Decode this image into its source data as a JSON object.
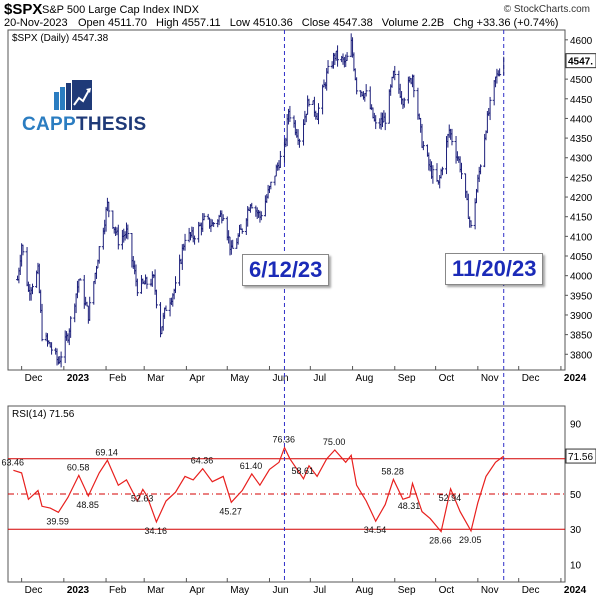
{
  "header": {
    "ticker": "$SPX",
    "full_name": "S&P 500 Large Cap Index",
    "exchange": "INDX",
    "date": "20-Nov-2023",
    "open_label": "Open",
    "open": "4511.70",
    "high_label": "High",
    "high": "4557.11",
    "low_label": "Low",
    "low": "4510.36",
    "close_label": "Close",
    "close": "4547.38",
    "volume_label": "Volume",
    "volume": "2.2B",
    "chg_label": "Chg",
    "chg": "+33.36 (+0.74%)",
    "copyright": "© StockCharts.com"
  },
  "logo": {
    "part1": "CAPP",
    "part2": "THESIS"
  },
  "annotations": [
    "6/12/23",
    "11/20/23"
  ],
  "colors": {
    "price": "#1c1f7a",
    "rsi": "#e8201e",
    "level": "#d40000",
    "marker": "#3030c8",
    "callout_text": "#1b2bb8"
  },
  "chart_data": [
    {
      "type": "bar",
      "legend": "$SPX (Daily) 4547.38",
      "last_value_label": "4547.",
      "y_ticks": [
        "4600",
        "4550",
        "4500",
        "4450",
        "4400",
        "4350",
        "4300",
        "4250",
        "4200",
        "4150",
        "4100",
        "4050",
        "4000",
        "3950",
        "3900",
        "3850",
        "3800"
      ],
      "ylim": [
        3760,
        4625
      ],
      "x_ticks": [
        "Dec",
        "2023",
        "Feb",
        "Mar",
        "Apr",
        "May",
        "Jun",
        "Jul",
        "Aug",
        "Sep",
        "Oct",
        "Nov",
        "Dec",
        "2024"
      ],
      "x_tick_dates": [
        "2022-12-01",
        "2023-01-01",
        "2023-02-01",
        "2023-03-01",
        "2023-04-01",
        "2023-05-01",
        "2023-06-01",
        "2023-07-01",
        "2023-08-01",
        "2023-09-01",
        "2023-10-01",
        "2023-11-01",
        "2023-12-01",
        "2024-01-01"
      ],
      "x_range": [
        "2022-11-21",
        "2024-01-04"
      ],
      "vertical_markers": [
        "2023-06-12",
        "2023-11-20"
      ],
      "series": [
        {
          "values": [
            [
              "2022-11-28",
              3990
            ],
            [
              "2022-12-01",
              4080
            ],
            [
              "2022-12-06",
              3960
            ],
            [
              "2022-12-13",
              4010
            ],
            [
              "2022-12-16",
              3850
            ],
            [
              "2022-12-22",
              3820
            ],
            [
              "2022-12-28",
              3780
            ],
            [
              "2023-01-04",
              3850
            ],
            [
              "2023-01-12",
              3990
            ],
            [
              "2023-01-19",
              3900
            ],
            [
              "2023-01-27",
              4070
            ],
            [
              "2023-02-02",
              4180
            ],
            [
              "2023-02-10",
              4090
            ],
            [
              "2023-02-16",
              4110
            ],
            [
              "2023-02-24",
              3970
            ],
            [
              "2023-03-02",
              3980
            ],
            [
              "2023-03-08",
              3990
            ],
            [
              "2023-03-13",
              3860
            ],
            [
              "2023-03-17",
              3920
            ],
            [
              "2023-03-24",
              3970
            ],
            [
              "2023-03-31",
              4100
            ],
            [
              "2023-04-06",
              4100
            ],
            [
              "2023-04-14",
              4140
            ],
            [
              "2023-04-20",
              4130
            ],
            [
              "2023-04-28",
              4160
            ],
            [
              "2023-05-04",
              4060
            ],
            [
              "2023-05-12",
              4120
            ],
            [
              "2023-05-18",
              4190
            ],
            [
              "2023-05-25",
              4150
            ],
            [
              "2023-06-01",
              4220
            ],
            [
              "2023-06-08",
              4290
            ],
            [
              "2023-06-12",
              4320
            ],
            [
              "2023-06-15",
              4420
            ],
            [
              "2023-06-23",
              4350
            ],
            [
              "2023-06-30",
              4450
            ],
            [
              "2023-07-06",
              4410
            ],
            [
              "2023-07-13",
              4510
            ],
            [
              "2023-07-19",
              4560
            ],
            [
              "2023-07-27",
              4540
            ],
            [
              "2023-07-31",
              4590
            ],
            [
              "2023-08-04",
              4480
            ],
            [
              "2023-08-11",
              4460
            ],
            [
              "2023-08-18",
              4380
            ],
            [
              "2023-08-25",
              4400
            ],
            [
              "2023-08-31",
              4510
            ],
            [
              "2023-09-07",
              4450
            ],
            [
              "2023-09-14",
              4510
            ],
            [
              "2023-09-21",
              4340
            ],
            [
              "2023-09-27",
              4270
            ],
            [
              "2023-10-03",
              4230
            ],
            [
              "2023-10-11",
              4370
            ],
            [
              "2023-10-19",
              4280
            ],
            [
              "2023-10-27",
              4120
            ],
            [
              "2023-11-01",
              4240
            ],
            [
              "2023-11-07",
              4380
            ],
            [
              "2023-11-14",
              4500
            ],
            [
              "2023-11-20",
              4547
            ]
          ]
        }
      ]
    },
    {
      "type": "line",
      "legend": "RSI(14) 71.56",
      "last_value_label": "71.56",
      "y_ticks": [
        "90",
        "70",
        "50",
        "30",
        "10"
      ],
      "ylim": [
        0,
        100
      ],
      "reference_lines": [
        70,
        50,
        30
      ],
      "x_ticks": [
        "Dec",
        "2023",
        "Feb",
        "Mar",
        "Apr",
        "May",
        "Jun",
        "Jul",
        "Aug",
        "Sep",
        "Oct",
        "Nov",
        "Dec",
        "2024"
      ],
      "labels": [
        {
          "date": "2022-11-25",
          "value": 63.46,
          "text": "63.46"
        },
        {
          "date": "2022-12-28",
          "value": 39.59,
          "text": "39.59"
        },
        {
          "date": "2023-01-12",
          "value": 60.58,
          "text": "60.58"
        },
        {
          "date": "2023-01-19",
          "value": 48.85,
          "text": "48.85"
        },
        {
          "date": "2023-02-02",
          "value": 69.14,
          "text": "69.14"
        },
        {
          "date": "2023-02-28",
          "value": 52.63,
          "text": "52.63"
        },
        {
          "date": "2023-03-10",
          "value": 34.16,
          "text": "34.16"
        },
        {
          "date": "2023-04-13",
          "value": 64.36,
          "text": "64.36"
        },
        {
          "date": "2023-05-04",
          "value": 45.27,
          "text": "45.27"
        },
        {
          "date": "2023-05-19",
          "value": 61.4,
          "text": "61.40"
        },
        {
          "date": "2023-06-12",
          "value": 76.36,
          "text": "76.36"
        },
        {
          "date": "2023-06-26",
          "value": 58.61,
          "text": "58.61"
        },
        {
          "date": "2023-07-19",
          "value": 75.0,
          "text": "75.00"
        },
        {
          "date": "2023-08-18",
          "value": 34.54,
          "text": "34.54"
        },
        {
          "date": "2023-08-31",
          "value": 58.28,
          "text": "58.28"
        },
        {
          "date": "2023-09-12",
          "value": 48.31,
          "text": "48.31"
        },
        {
          "date": "2023-10-05",
          "value": 28.66,
          "text": "28.66"
        },
        {
          "date": "2023-10-12",
          "value": 52.94,
          "text": "52.94"
        },
        {
          "date": "2023-10-27",
          "value": 29.05,
          "text": "29.05"
        }
      ],
      "series": [
        {
          "values": [
            [
              "2022-11-25",
              63.46
            ],
            [
              "2022-12-01",
              62
            ],
            [
              "2022-12-06",
              47
            ],
            [
              "2022-12-13",
              52
            ],
            [
              "2022-12-16",
              43
            ],
            [
              "2022-12-22",
              42
            ],
            [
              "2022-12-28",
              39.59
            ],
            [
              "2023-01-04",
              48
            ],
            [
              "2023-01-12",
              60.58
            ],
            [
              "2023-01-19",
              48.85
            ],
            [
              "2023-01-27",
              62
            ],
            [
              "2023-02-02",
              69.14
            ],
            [
              "2023-02-10",
              55
            ],
            [
              "2023-02-16",
              58
            ],
            [
              "2023-02-24",
              46
            ],
            [
              "2023-02-28",
              52.63
            ],
            [
              "2023-03-03",
              49
            ],
            [
              "2023-03-10",
              34.16
            ],
            [
              "2023-03-17",
              46
            ],
            [
              "2023-03-24",
              51
            ],
            [
              "2023-03-31",
              60
            ],
            [
              "2023-04-06",
              58
            ],
            [
              "2023-04-13",
              64.36
            ],
            [
              "2023-04-20",
              57
            ],
            [
              "2023-04-28",
              60
            ],
            [
              "2023-05-04",
              45.27
            ],
            [
              "2023-05-12",
              52
            ],
            [
              "2023-05-19",
              61.4
            ],
            [
              "2023-05-25",
              55
            ],
            [
              "2023-06-01",
              64
            ],
            [
              "2023-06-08",
              68
            ],
            [
              "2023-06-12",
              76.36
            ],
            [
              "2023-06-16",
              70
            ],
            [
              "2023-06-26",
              58.61
            ],
            [
              "2023-06-30",
              66
            ],
            [
              "2023-07-06",
              60
            ],
            [
              "2023-07-13",
              70
            ],
            [
              "2023-07-19",
              75.0
            ],
            [
              "2023-07-27",
              68
            ],
            [
              "2023-07-31",
              72
            ],
            [
              "2023-08-04",
              55
            ],
            [
              "2023-08-11",
              46
            ],
            [
              "2023-08-18",
              34.54
            ],
            [
              "2023-08-25",
              44
            ],
            [
              "2023-08-31",
              58.28
            ],
            [
              "2023-09-07",
              47
            ],
            [
              "2023-09-12",
              48.31
            ],
            [
              "2023-09-14",
              56
            ],
            [
              "2023-09-21",
              40
            ],
            [
              "2023-09-27",
              36
            ],
            [
              "2023-10-05",
              28.66
            ],
            [
              "2023-10-12",
              52.94
            ],
            [
              "2023-10-19",
              40
            ],
            [
              "2023-10-27",
              29.05
            ],
            [
              "2023-11-01",
              45
            ],
            [
              "2023-11-07",
              60
            ],
            [
              "2023-11-14",
              68
            ],
            [
              "2023-11-20",
              71.56
            ]
          ]
        }
      ]
    }
  ]
}
